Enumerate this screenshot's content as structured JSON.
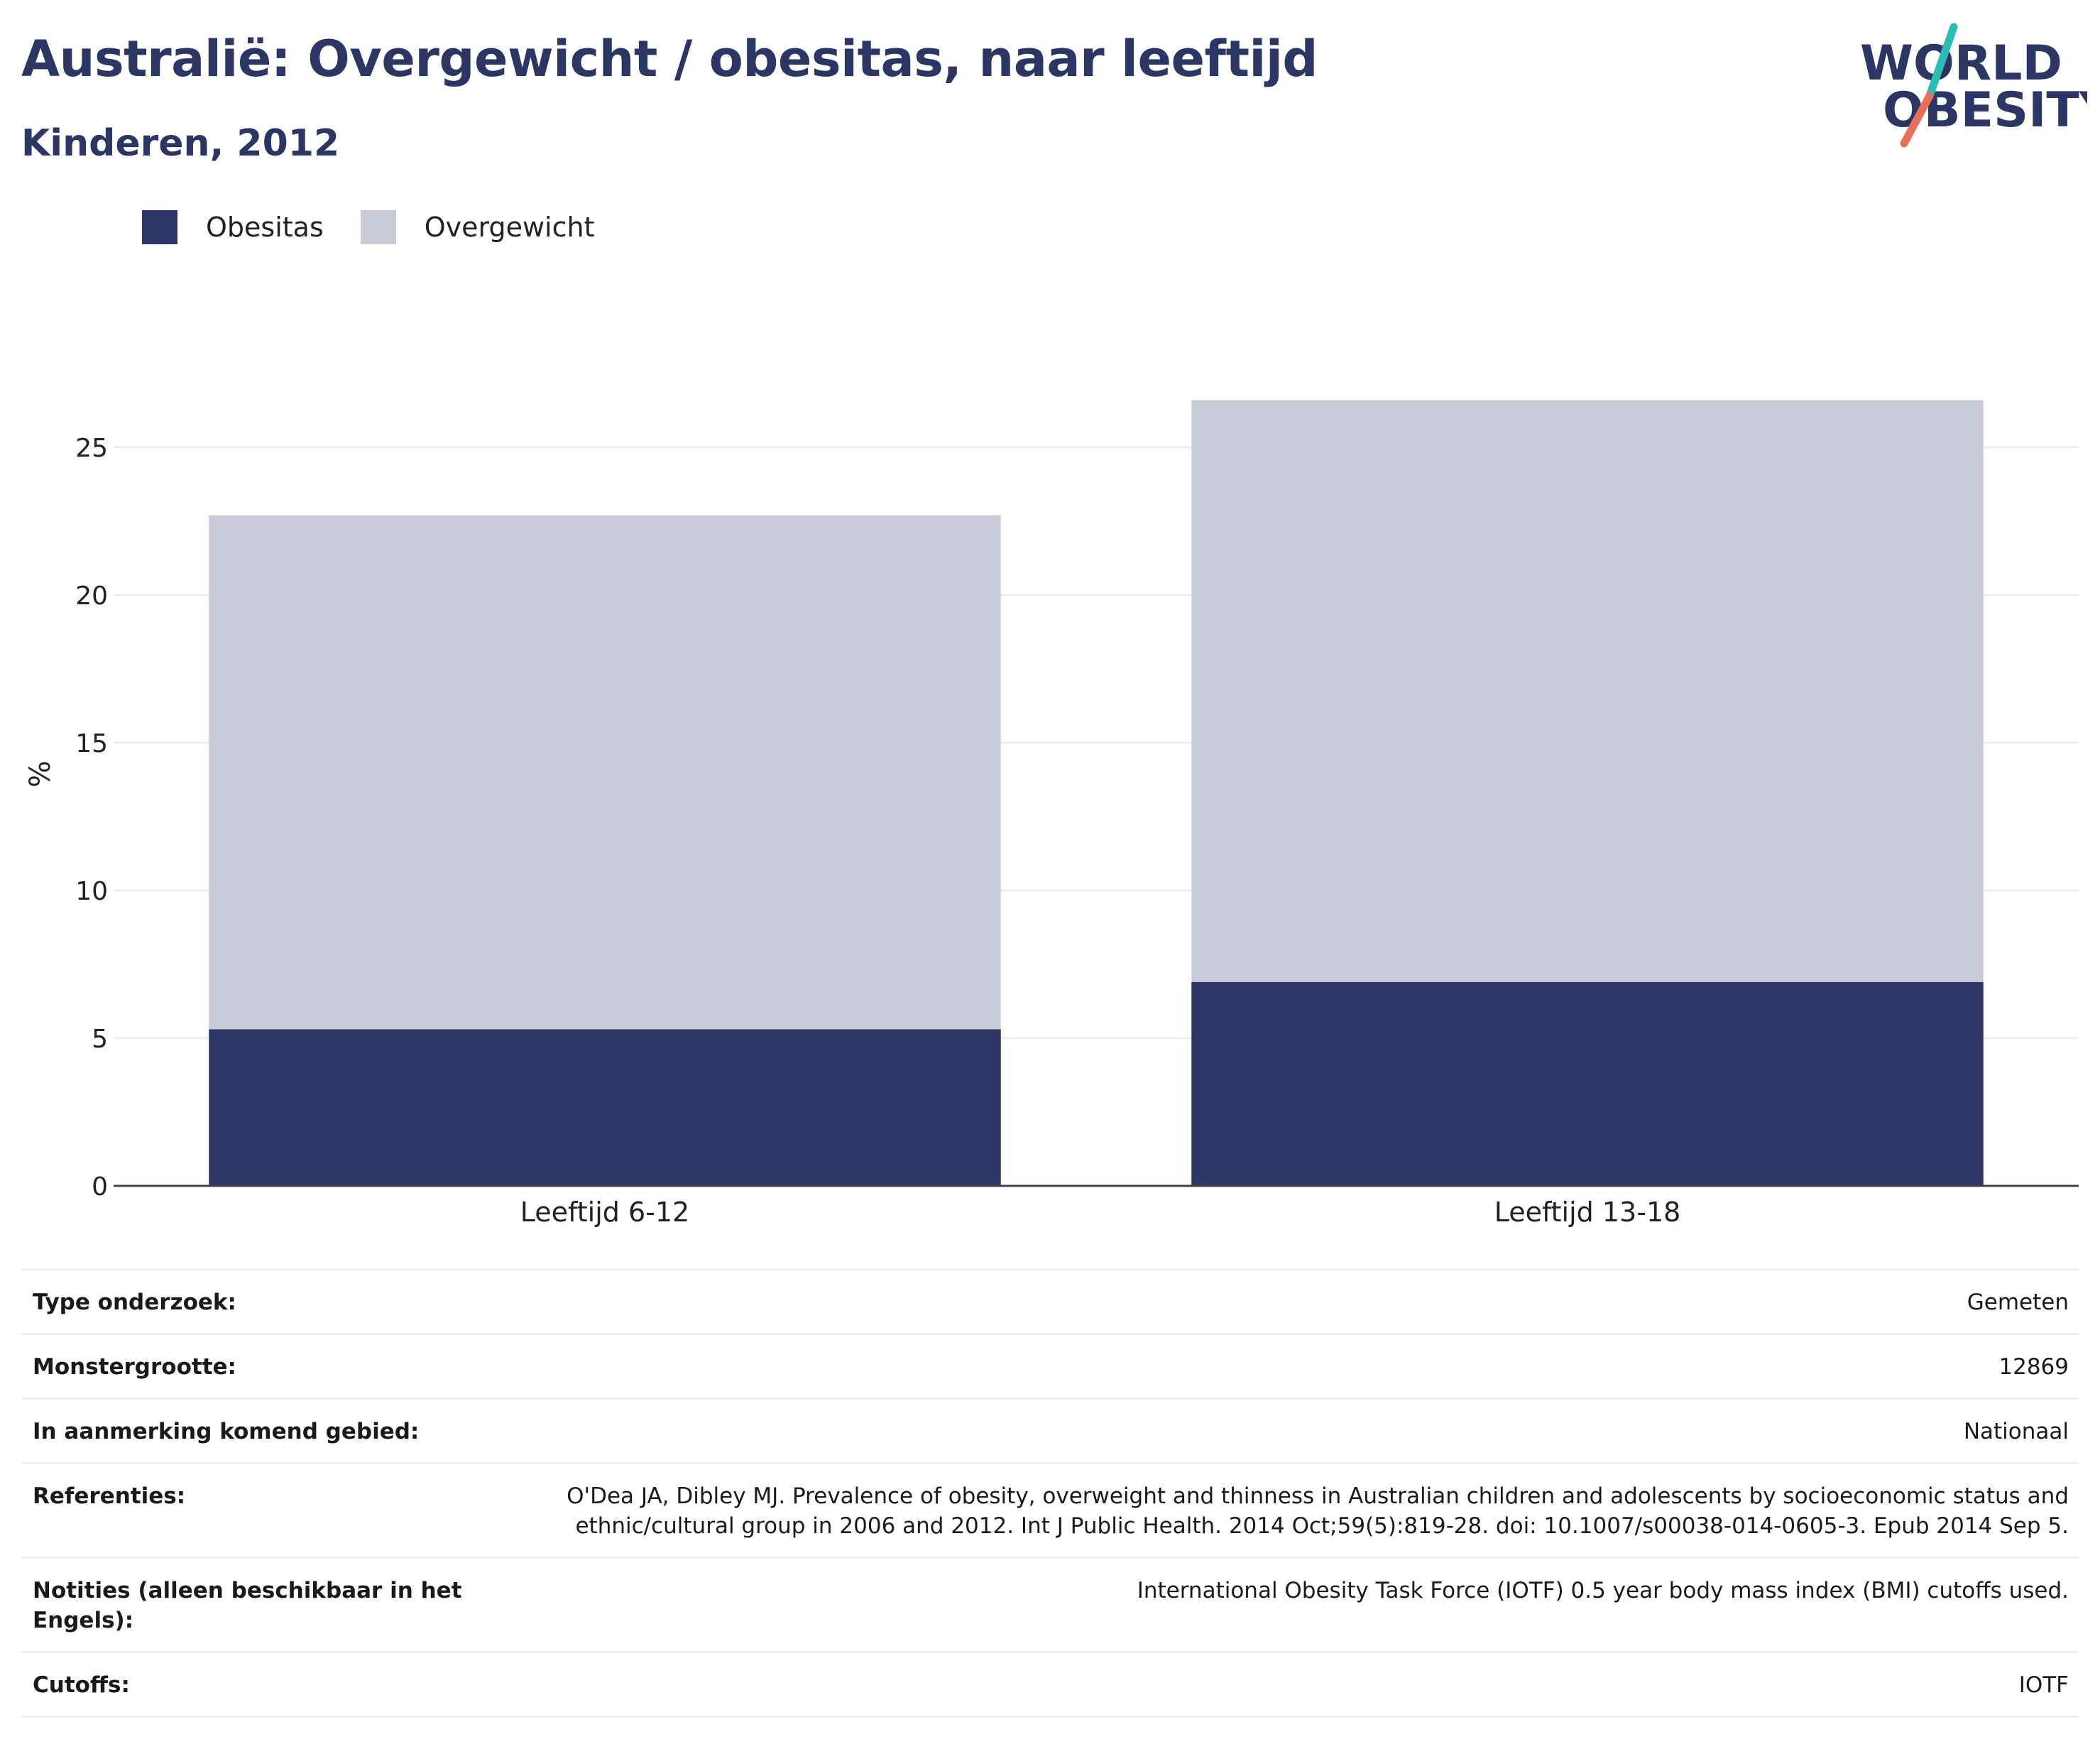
{
  "header": {
    "title": "Australië: Overgewicht / obesitas, naar leeftijd",
    "subtitle": "Kinderen, 2012"
  },
  "logo": {
    "line1": "WORLD",
    "line2": "OBESITY",
    "accent_colors": [
      "#2bbdb4",
      "#e8705a"
    ],
    "text_color": "#2b3664"
  },
  "legend": [
    {
      "name": "Obesitas",
      "color": "#2b3664"
    },
    {
      "name": "Overgewicht",
      "color": "#c9ccd8"
    }
  ],
  "chart_data": {
    "type": "bar",
    "stacked": true,
    "title": "Australië: Overgewicht / obesitas, naar leeftijd",
    "subtitle": "Kinderen, 2012",
    "categories": [
      "Leeftijd 6-12",
      "Leeftijd 13-18"
    ],
    "series": [
      {
        "name": "Obesitas",
        "color": "#2b3664",
        "values": [
          5.3,
          6.9
        ]
      },
      {
        "name": "Overgewicht",
        "color": "#c9ccd8",
        "values": [
          17.4,
          19.7
        ]
      }
    ],
    "xlabel": "",
    "ylabel": "%",
    "ylim": [
      0,
      27
    ],
    "yticks": [
      0,
      5,
      10,
      15,
      20,
      25
    ],
    "grid": true,
    "legend_position": "top-left"
  },
  "details": [
    {
      "label": "Type onderzoek:",
      "value": "Gemeten"
    },
    {
      "label": "Monstergrootte:",
      "value": "12869"
    },
    {
      "label": "In aanmerking komend gebied:",
      "value": "Nationaal"
    },
    {
      "label": "Referenties:",
      "value": "O'Dea JA, Dibley MJ. Prevalence of obesity, overweight and thinness in Australian children and adolescents by socioeconomic status and ethnic/cultural group in 2006 and 2012. Int J Public Health. 2014 Oct;59(5):819-28. doi: 10.1007/s00038-014-0605-3. Epub 2014 Sep 5."
    },
    {
      "label": "Notities (alleen beschikbaar in het Engels):",
      "value": "International Obesity Task Force (IOTF) 0.5 year body mass index (BMI) cutoffs used."
    },
    {
      "label": "Cutoffs:",
      "value": "IOTF"
    }
  ]
}
